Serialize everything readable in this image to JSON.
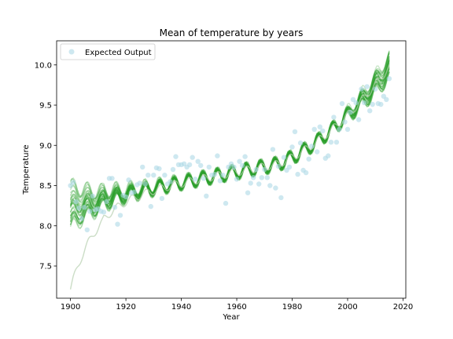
{
  "chart_data": {
    "type": "scatter",
    "title": "Mean of temperature by years",
    "xlabel": "Year",
    "ylabel": "Temperature",
    "xlim": [
      1895,
      2021
    ],
    "ylim": [
      7.1,
      10.3
    ],
    "xticks": [
      1900,
      1920,
      1940,
      1960,
      1980,
      2000,
      2020
    ],
    "yticks": [
      7.5,
      8.0,
      8.5,
      9.0,
      9.5,
      10.0
    ],
    "grid": false,
    "legend_position": "top-left",
    "colors": {
      "scatter": "#add8e6",
      "lines": "#2ca02c",
      "outlier_line": "#b5cfae"
    },
    "legend": [
      "Expected Output"
    ],
    "series": [
      {
        "name": "Expected Output",
        "type": "scatter",
        "x": [
          1900,
          1901,
          1902,
          1903,
          1904,
          1905,
          1906,
          1907,
          1908,
          1909,
          1910,
          1911,
          1912,
          1913,
          1914,
          1915,
          1916,
          1917,
          1918,
          1919,
          1920,
          1921,
          1922,
          1923,
          1924,
          1925,
          1926,
          1927,
          1928,
          1929,
          1930,
          1931,
          1932,
          1933,
          1934,
          1935,
          1936,
          1937,
          1938,
          1939,
          1940,
          1941,
          1942,
          1943,
          1944,
          1945,
          1946,
          1947,
          1948,
          1949,
          1950,
          1951,
          1952,
          1953,
          1954,
          1955,
          1956,
          1957,
          1958,
          1959,
          1960,
          1961,
          1962,
          1963,
          1964,
          1965,
          1966,
          1967,
          1968,
          1969,
          1970,
          1971,
          1972,
          1973,
          1974,
          1975,
          1976,
          1977,
          1978,
          1979,
          1980,
          1981,
          1982,
          1983,
          1984,
          1985,
          1986,
          1987,
          1988,
          1989,
          1990,
          1991,
          1992,
          1993,
          1994,
          1995,
          1996,
          1997,
          1998,
          1999,
          2000,
          2001,
          2002,
          2003,
          2004,
          2005,
          2006,
          2007,
          2008,
          2009,
          2010,
          2011,
          2012,
          2013,
          2014,
          2015
        ],
        "y": [
          8.5,
          8.54,
          8.3,
          8.22,
          8.09,
          8.23,
          7.95,
          8.18,
          8.37,
          8.2,
          8.21,
          8.18,
          8.17,
          8.3,
          8.59,
          8.59,
          8.23,
          8.02,
          8.13,
          8.38,
          8.36,
          8.57,
          8.41,
          8.42,
          8.51,
          8.53,
          8.73,
          8.52,
          8.63,
          8.24,
          8.63,
          8.72,
          8.71,
          8.34,
          8.63,
          8.52,
          8.55,
          8.7,
          8.86,
          8.76,
          8.76,
          8.77,
          8.73,
          8.76,
          8.85,
          8.58,
          8.8,
          8.75,
          8.59,
          8.37,
          8.73,
          8.63,
          8.64,
          8.87,
          8.56,
          8.63,
          8.28,
          8.73,
          8.77,
          8.73,
          8.58,
          8.8,
          8.75,
          8.86,
          8.41,
          8.53,
          8.6,
          8.7,
          8.52,
          8.6,
          8.7,
          8.6,
          8.5,
          8.95,
          8.47,
          8.74,
          8.35,
          8.85,
          8.69,
          8.73,
          8.98,
          9.17,
          8.64,
          9.03,
          8.69,
          8.66,
          8.83,
          8.99,
          9.2,
          8.92,
          9.23,
          9.18,
          8.84,
          8.87,
          9.04,
          9.35,
          9.04,
          9.2,
          9.52,
          9.29,
          9.2,
          9.41,
          9.57,
          9.53,
          9.32,
          9.7,
          9.53,
          9.73,
          9.43,
          9.51,
          9.7,
          9.52,
          9.51,
          9.61,
          9.57,
          9.83
        ]
      }
    ]
  }
}
